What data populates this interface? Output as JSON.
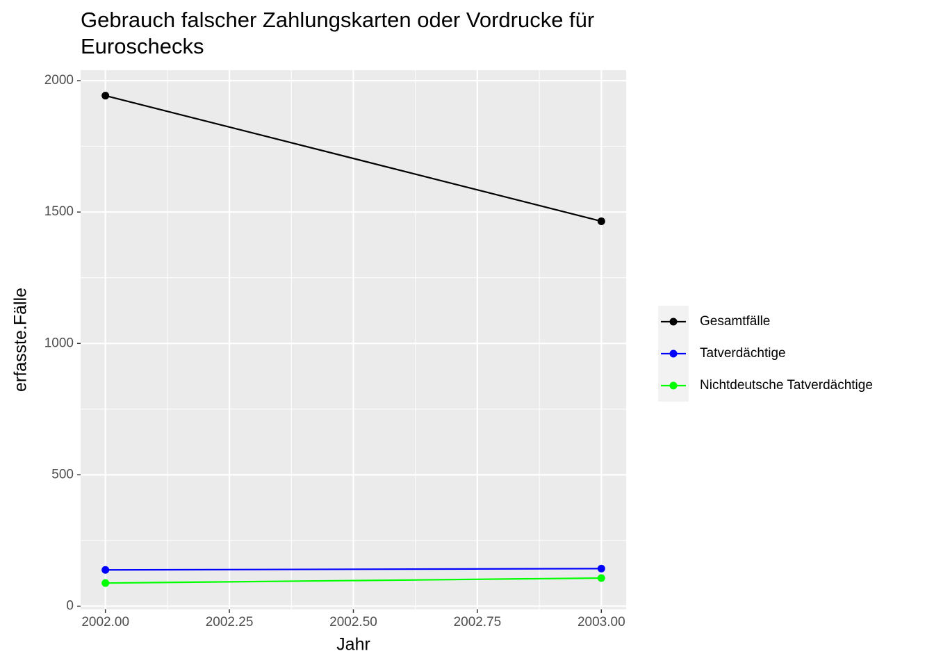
{
  "chart_data": {
    "type": "line",
    "title": "Gebrauch falscher Zahlungskarten oder Vordrucke für Euroschecks",
    "x_label": "Jahr",
    "y_label": "erfasste.Fälle",
    "x": [
      2002,
      2003
    ],
    "series": [
      {
        "name": "Gesamtfälle",
        "color": "#000000",
        "values": [
          1943,
          1465
        ]
      },
      {
        "name": "Tatverdächtige",
        "color": "#0000ff",
        "values": [
          138,
          143
        ]
      },
      {
        "name": "Nichtdeutsche Tatverdächtige",
        "color": "#00ff00",
        "values": [
          88,
          107
        ]
      }
    ],
    "xlim": [
      2001.95,
      2003.05
    ],
    "xticks": [
      {
        "value": 2002,
        "label": "2002.00"
      },
      {
        "value": 2002.25,
        "label": "2002.25"
      },
      {
        "value": 2002.5,
        "label": "2002.50"
      },
      {
        "value": 2002.75,
        "label": "2002.75"
      },
      {
        "value": 2003,
        "label": "2003.00"
      }
    ],
    "xminor": [
      2002.125,
      2002.375,
      2002.625,
      2002.875
    ],
    "ylim": [
      -12,
      2040
    ],
    "yticks": [
      0,
      500,
      1000,
      1500,
      2000
    ],
    "yminor": [
      250,
      750,
      1250,
      1750
    ],
    "grid": true,
    "legend_position": "right"
  }
}
